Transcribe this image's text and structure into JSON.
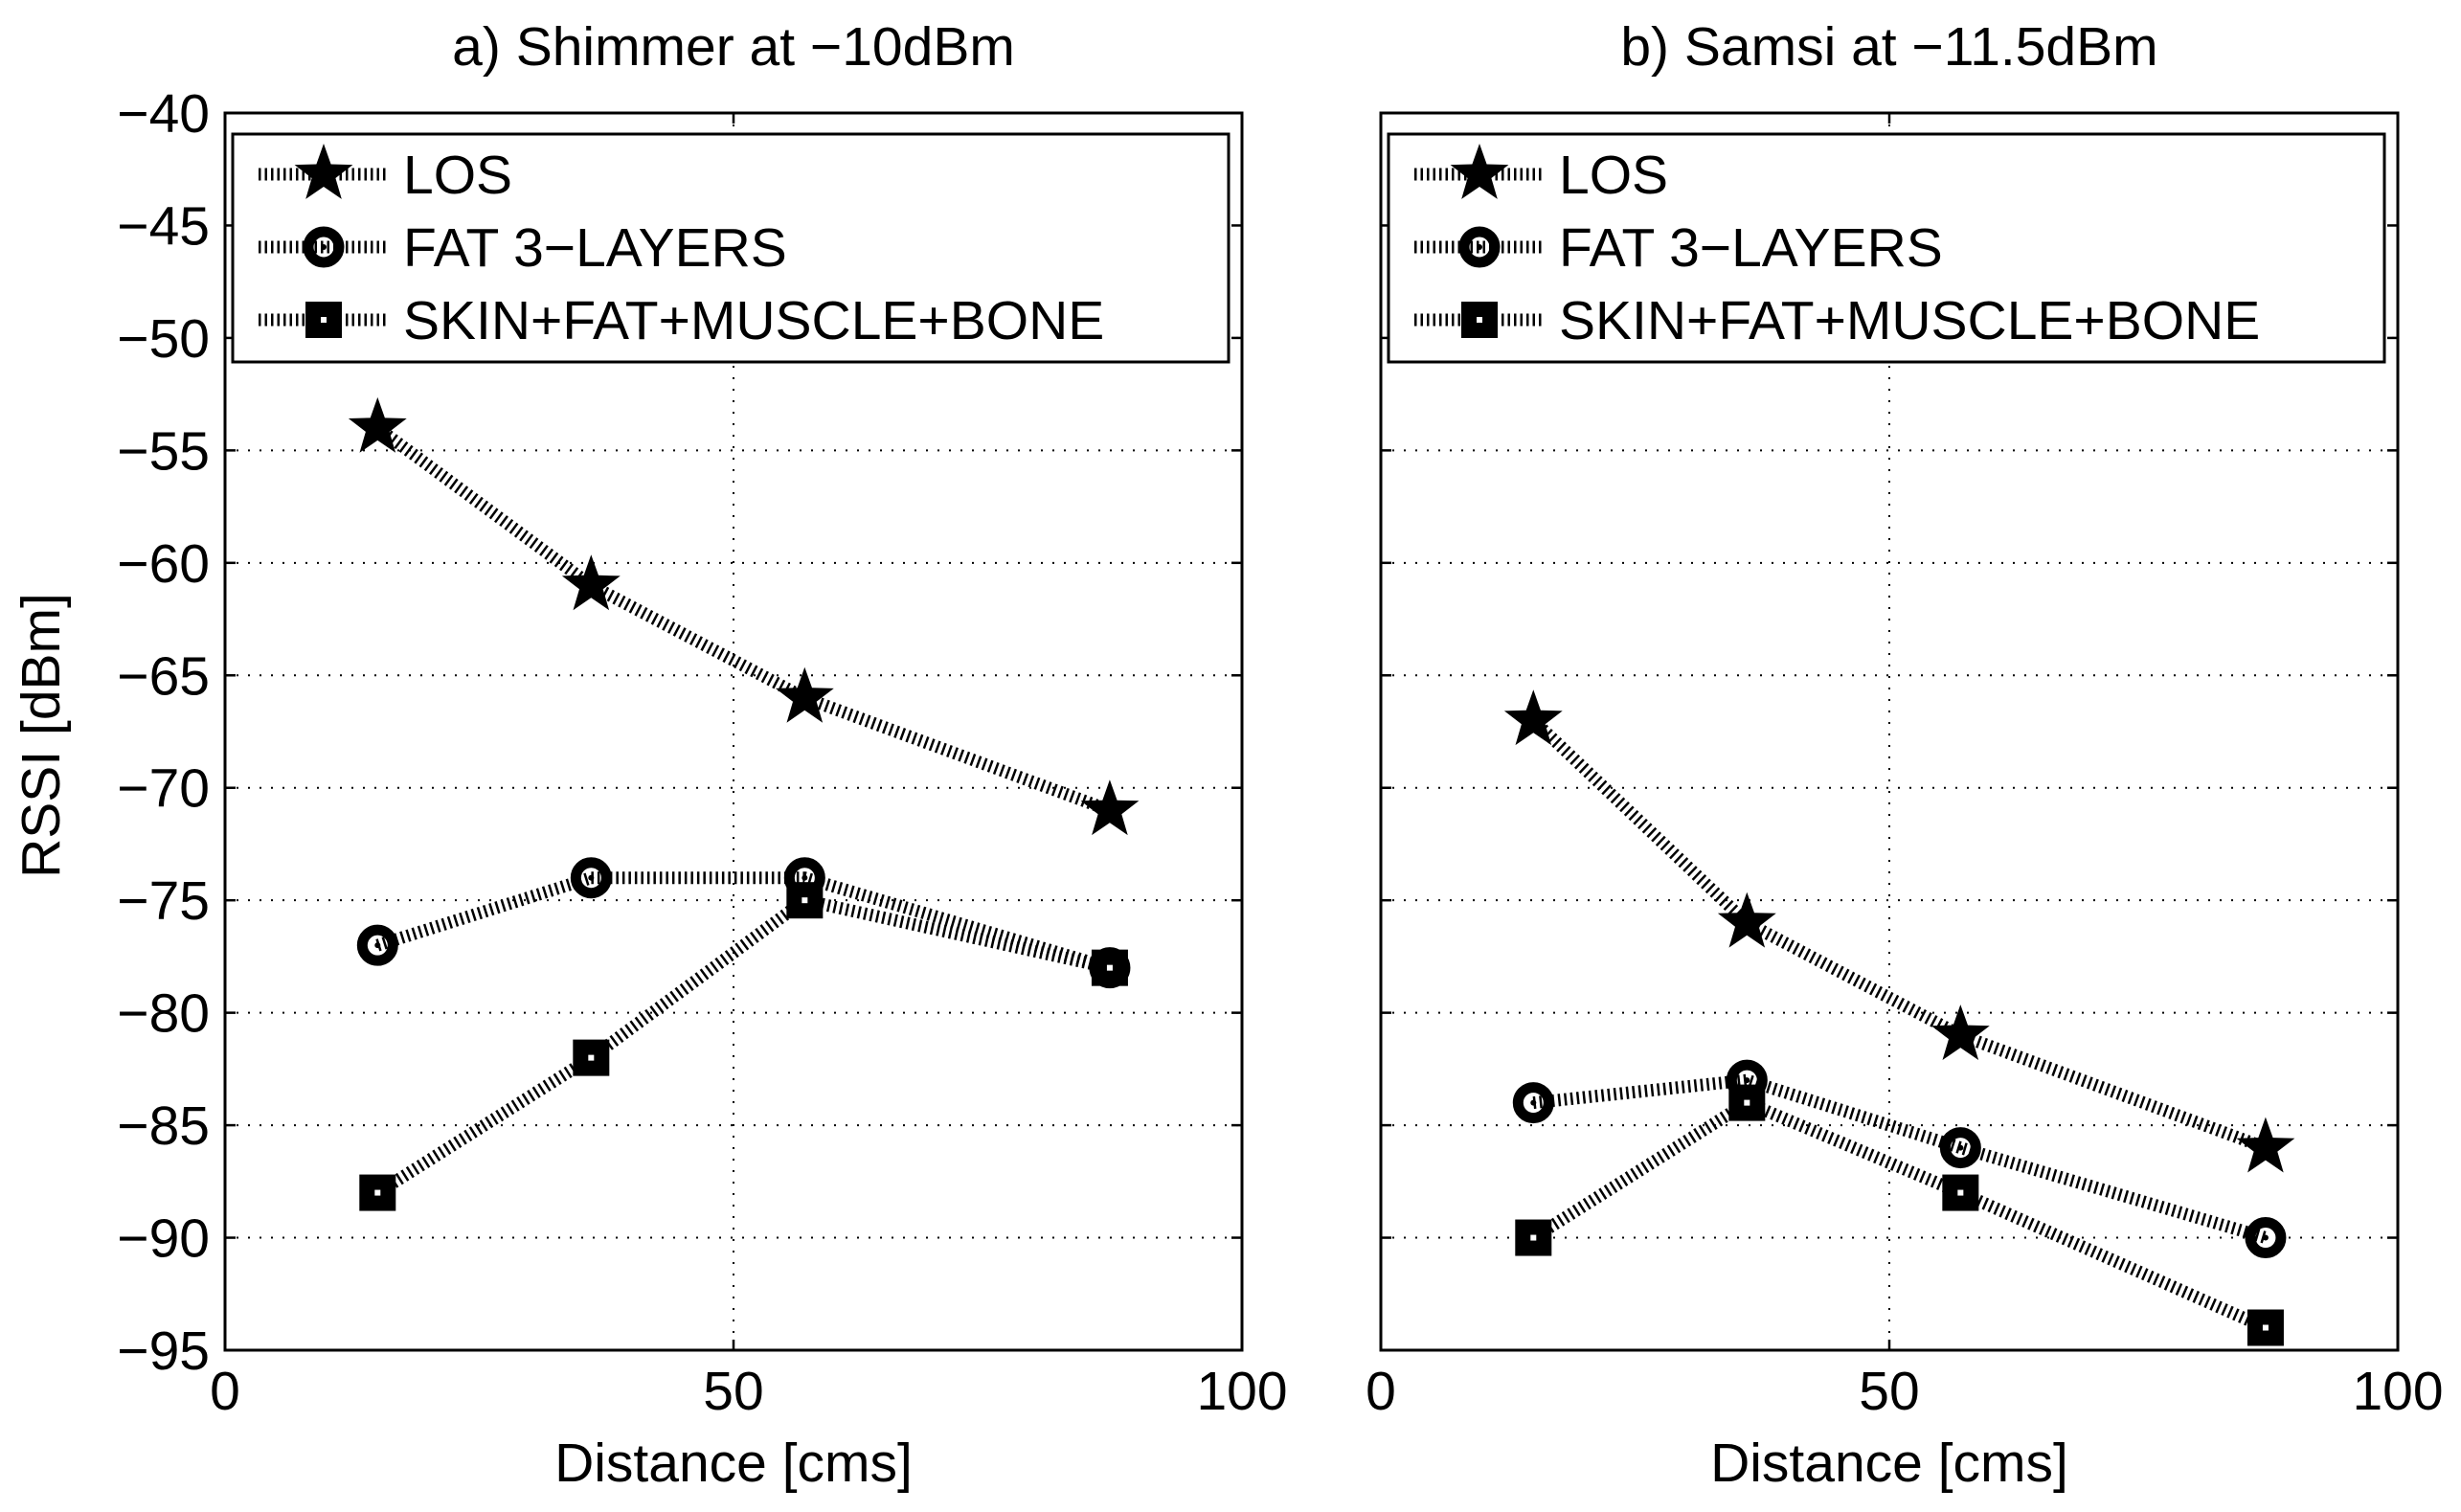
{
  "figure": {
    "ylabel": "RSSI [dBm]"
  },
  "chart_data": [
    {
      "type": "line",
      "title": "a) Shimmer at −10dBm",
      "xlabel": "Distance [cms]",
      "ylabel": "RSSI [dBm]",
      "xlim": [
        0,
        100
      ],
      "ylim": [
        -95,
        -40
      ],
      "xticks": [
        0,
        50,
        100
      ],
      "xtick_labels": [
        "0",
        "50",
        "100"
      ],
      "yticks": [
        -95,
        -90,
        -85,
        -80,
        -75,
        -70,
        -65,
        -60,
        -55,
        -50,
        -45,
        -40
      ],
      "ytick_labels": [
        "−95",
        "−90",
        "−85",
        "−80",
        "−75",
        "−70",
        "−65",
        "−60",
        "−55",
        "−50",
        "−45",
        "−40"
      ],
      "grid": true,
      "legend_position": "top-left",
      "x": [
        15,
        36,
        57,
        87
      ],
      "series": [
        {
          "name": "LOS",
          "marker": "star",
          "values": [
            -54,
            -61,
            -66,
            -71
          ]
        },
        {
          "name": "FAT 3−LAYERS",
          "marker": "circle",
          "values": [
            -77,
            -74,
            -74,
            -78
          ]
        },
        {
          "name": "SKIN+FAT+MUSCLE+BONE",
          "marker": "square",
          "values": [
            -88,
            -82,
            -75,
            -78
          ]
        }
      ]
    },
    {
      "type": "line",
      "title": "b) Samsi at −11.5dBm",
      "xlabel": "Distance [cms]",
      "ylabel": "",
      "xlim": [
        0,
        100
      ],
      "ylim": [
        -95,
        -40
      ],
      "xticks": [
        0,
        50,
        100
      ],
      "xtick_labels": [
        "0",
        "50",
        "100"
      ],
      "yticks": [],
      "ytick_labels": [],
      "grid": true,
      "legend_position": "top-left",
      "x": [
        15,
        36,
        57,
        87
      ],
      "series": [
        {
          "name": "LOS",
          "marker": "star",
          "values": [
            -67,
            -76,
            -81,
            -86
          ]
        },
        {
          "name": "FAT 3−LAYERS",
          "marker": "circle",
          "values": [
            -84,
            -83,
            -86,
            -90
          ]
        },
        {
          "name": "SKIN+FAT+MUSCLE+BONE",
          "marker": "square",
          "values": [
            -90,
            -84,
            -88,
            -94
          ]
        }
      ]
    }
  ]
}
